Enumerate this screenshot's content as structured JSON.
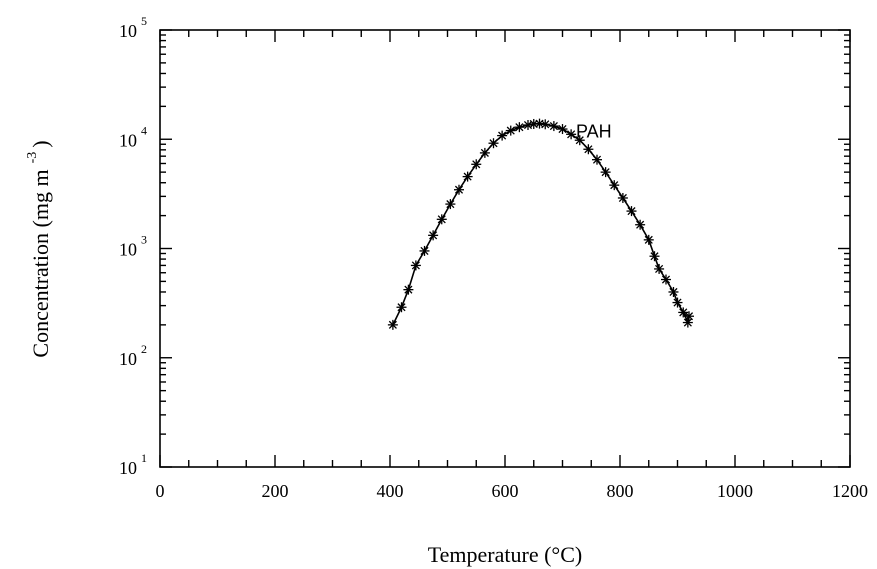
{
  "chart_data": {
    "type": "line",
    "title": "",
    "xlabel": "Temperature (°C)",
    "ylabel_main": "Concentration (mg m",
    "ylabel_sup": "-3",
    "ylabel_close": ")",
    "xlim": [
      0,
      1200
    ],
    "ylim": [
      10,
      100000
    ],
    "yscale": "log",
    "x_ticks": [
      0,
      200,
      400,
      600,
      800,
      1000,
      1200
    ],
    "x_tick_labels": [
      "0",
      "200",
      "400",
      "600",
      "800",
      "1000",
      "1200"
    ],
    "y_ticks": [
      {
        "value": 10,
        "base": "10",
        "exp": "1"
      },
      {
        "value": 100,
        "base": "10",
        "exp": "2"
      },
      {
        "value": 1000,
        "base": "10",
        "exp": "3"
      },
      {
        "value": 10000,
        "base": "10",
        "exp": "4"
      },
      {
        "value": 100000,
        "base": "10",
        "exp": "5"
      }
    ],
    "grid": false,
    "annotations": [
      {
        "text": "PAH",
        "x": 720,
        "y": 10000
      }
    ],
    "series": [
      {
        "marker": "asterisk",
        "points": [
          [
            405,
            200
          ],
          [
            420,
            290
          ],
          [
            432,
            420
          ],
          [
            445,
            700
          ],
          [
            460,
            950
          ],
          [
            475,
            1320
          ],
          [
            490,
            1850
          ],
          [
            505,
            2550
          ],
          [
            520,
            3450
          ],
          [
            535,
            4550
          ],
          [
            550,
            5900
          ],
          [
            565,
            7500
          ],
          [
            580,
            9200
          ],
          [
            595,
            10800
          ],
          [
            610,
            12000
          ],
          [
            625,
            12900
          ],
          [
            640,
            13500
          ],
          [
            650,
            13800
          ],
          [
            660,
            13900
          ],
          [
            670,
            13700
          ],
          [
            685,
            13200
          ],
          [
            700,
            12400
          ],
          [
            715,
            11100
          ],
          [
            730,
            9800
          ],
          [
            745,
            8100
          ],
          [
            760,
            6500
          ],
          [
            775,
            5000
          ],
          [
            790,
            3800
          ],
          [
            805,
            2900
          ],
          [
            820,
            2200
          ],
          [
            835,
            1650
          ],
          [
            850,
            1200
          ],
          [
            860,
            850
          ],
          [
            868,
            650
          ],
          [
            880,
            520
          ],
          [
            893,
            400
          ],
          [
            900,
            320
          ],
          [
            910,
            260
          ],
          [
            918,
            210
          ],
          [
            920,
            240
          ]
        ]
      }
    ]
  }
}
